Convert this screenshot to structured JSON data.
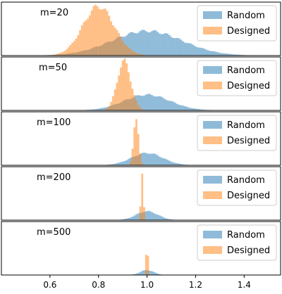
{
  "chart_data": {
    "type": "histogram",
    "xlim": [
      0.4,
      1.55
    ],
    "xticks": [
      0.6,
      0.8,
      1.0,
      1.2,
      1.4
    ],
    "xtick_labels": [
      "0.6",
      "0.8",
      "1.0",
      "1.2",
      "1.4"
    ],
    "bin_width": 0.008,
    "legend_position": "upper-right",
    "colors": {
      "Random": "#1f77b4",
      "Designed": "#ff7f0e"
    },
    "series_names": [
      "Random",
      "Designed"
    ],
    "panels": [
      {
        "label": "m=20",
        "series": [
          {
            "name": "Random",
            "distribution": "gaussian",
            "center": 1.0,
            "spread": 0.145,
            "peak_fraction": 0.5
          },
          {
            "name": "Designed",
            "distribution": "gaussian",
            "center": 0.8,
            "spread": 0.065,
            "peak_fraction": 1.0
          }
        ]
      },
      {
        "label": "m=50",
        "series": [
          {
            "name": "Random",
            "distribution": "gaussian",
            "center": 1.0,
            "spread": 0.095,
            "peak_fraction": 0.32
          },
          {
            "name": "Designed",
            "distribution": "gaussian",
            "center": 0.905,
            "spread": 0.028,
            "peak_fraction": 1.0
          }
        ]
      },
      {
        "label": "m=100",
        "series": [
          {
            "name": "Random",
            "distribution": "gaussian",
            "center": 1.0,
            "spread": 0.065,
            "peak_fraction": 0.25
          },
          {
            "name": "Designed",
            "distribution": "gaussian",
            "center": 0.955,
            "spread": 0.01,
            "peak_fraction": 1.0
          }
        ]
      },
      {
        "label": "m=200",
        "series": [
          {
            "name": "Random",
            "distribution": "gaussian",
            "center": 1.0,
            "spread": 0.045,
            "peak_fraction": 0.18
          },
          {
            "name": "Designed",
            "distribution": "gaussian",
            "center": 0.98,
            "spread": 0.005,
            "peak_fraction": 1.0
          }
        ]
      },
      {
        "label": "m=500",
        "series": [
          {
            "name": "Random",
            "distribution": "gaussian",
            "center": 1.0,
            "spread": 0.028,
            "peak_fraction": 0.1
          },
          {
            "name": "Designed",
            "distribution": "gaussian",
            "center": 1.0,
            "spread": 0.003,
            "peak_fraction": 1.0
          }
        ]
      }
    ]
  }
}
